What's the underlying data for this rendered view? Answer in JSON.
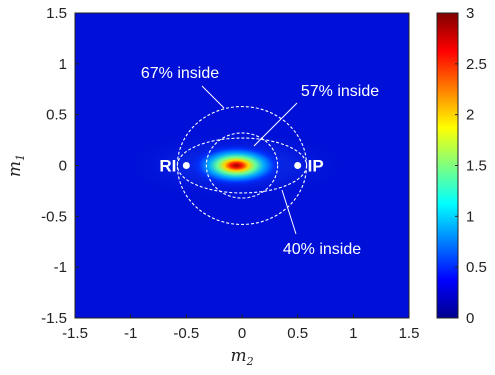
{
  "chart_data": {
    "type": "heatmap",
    "title": "",
    "xlabel": "m",
    "xlabel_sub": "2",
    "ylabel": "m",
    "ylabel_sub": "1",
    "xlim": [
      -1.5,
      1.5
    ],
    "ylim": [
      -1.5,
      1.5
    ],
    "xticks": [
      "-1.5",
      "-1",
      "-0.5",
      "0",
      "0.5",
      "1",
      "1.5"
    ],
    "yticks": [
      "1.5",
      "1",
      "0.5",
      "0",
      "-0.5",
      "-1",
      "-1.5"
    ],
    "grid": false,
    "colormap": "jet",
    "colorbar": {
      "range": [
        0,
        3
      ],
      "ticks": [
        "3",
        "2.5",
        "2",
        "1.5",
        "1",
        "0.5",
        "0"
      ]
    },
    "density_peak": {
      "x": -0.05,
      "y": 0.0,
      "value": 3.0
    },
    "points": [
      {
        "label": "RI",
        "x": -0.5,
        "y": 0.0
      },
      {
        "label": "IP",
        "x": 0.5,
        "y": 0.0
      }
    ],
    "regions": [
      {
        "shape": "circle",
        "cx": 0,
        "cy": 0,
        "r": 0.58,
        "label": "67% inside"
      },
      {
        "shape": "ellipse",
        "cx": 0,
        "cy": 0,
        "rx": 0.58,
        "ry": 0.27,
        "label": "57% inside"
      },
      {
        "shape": "circle",
        "cx": 0,
        "cy": 0,
        "r": 0.32,
        "label": "40% inside"
      }
    ]
  }
}
